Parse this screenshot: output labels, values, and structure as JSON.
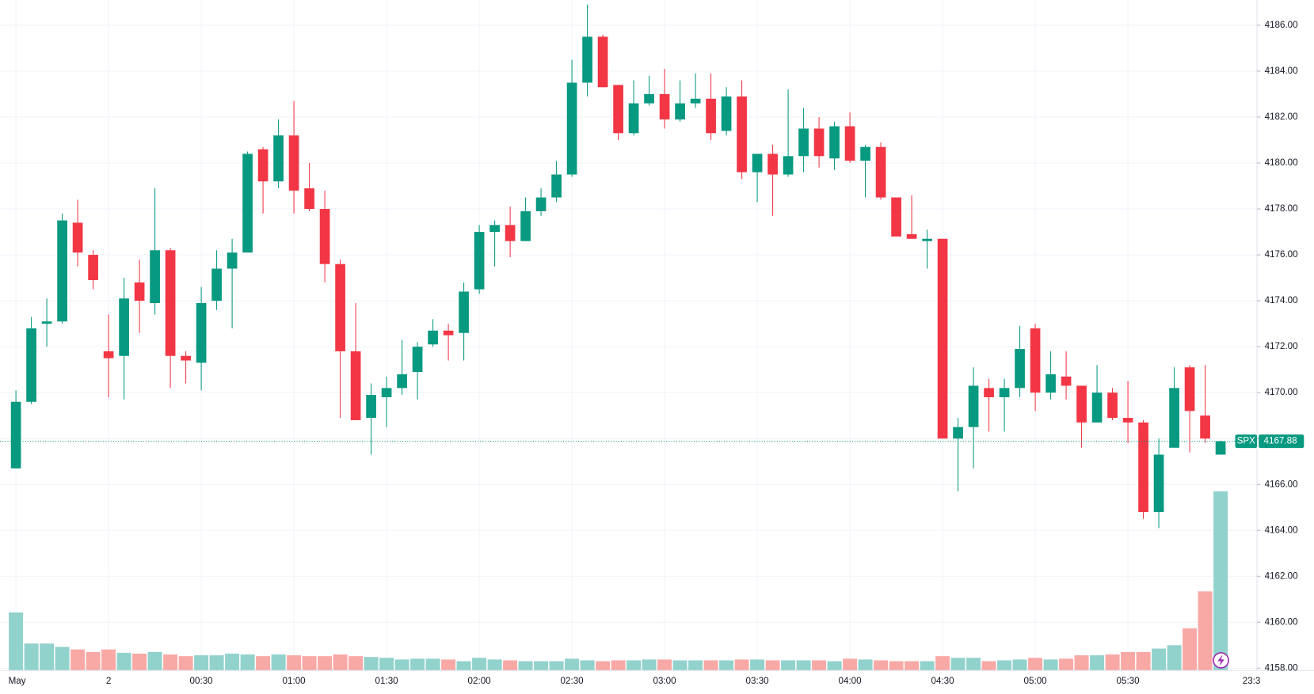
{
  "chart_data": {
    "type": "candlestick",
    "symbol": "SPX",
    "categories": [
      "May",
      null,
      null,
      null,
      null,
      null,
      "2",
      null,
      null,
      null,
      null,
      null,
      "00:30",
      null,
      null,
      null,
      null,
      null,
      "01:00",
      null,
      null,
      null,
      null,
      null,
      "01:30",
      null,
      null,
      null,
      null,
      null,
      "02:00",
      null,
      null,
      null,
      null,
      null,
      "02:30",
      null,
      null,
      null,
      null,
      null,
      "03:00",
      null,
      null,
      null,
      null,
      null,
      "03:30",
      null,
      null,
      null,
      null,
      null,
      "04:00",
      null,
      null,
      null,
      null,
      null,
      "04:30",
      null,
      null,
      null,
      null,
      null,
      "05:00",
      null,
      null,
      null,
      null,
      null,
      "05:30",
      null,
      null,
      null,
      null,
      null,
      null
    ],
    "extra_x_label": "23:3",
    "open": [
      4166.7,
      4169.6,
      4173.0,
      4173.1,
      4177.4,
      4176.0,
      4171.8,
      4171.6,
      4174.8,
      4173.9,
      4176.2,
      4171.6,
      4171.3,
      4174.0,
      4175.4,
      4176.1,
      4180.6,
      4179.2,
      4181.2,
      4178.9,
      4178.0,
      4175.6,
      4171.8,
      4168.9,
      4169.8,
      4170.2,
      4170.9,
      4172.1,
      4172.7,
      4172.6,
      4174.5,
      4177.0,
      4177.3,
      4176.6,
      4177.9,
      4178.5,
      4179.5,
      4183.5,
      4185.5,
      4183.4,
      4181.3,
      4182.6,
      4183.0,
      4181.9,
      4182.6,
      4182.8,
      4181.4,
      4182.9,
      4179.6,
      4180.4,
      4179.5,
      4180.3,
      4181.5,
      4180.2,
      4181.6,
      4180.1,
      4180.7,
      4178.5,
      4176.9,
      4176.6,
      4176.7,
      4168.0,
      4168.5,
      4170.2,
      4169.8,
      4170.2,
      4172.8,
      4170.0,
      4170.7,
      4170.3,
      4168.7,
      4170.0,
      4168.9,
      4168.7,
      4164.8,
      4167.6,
      4171.1,
      4169.0,
      4167.3
    ],
    "high": [
      4170.1,
      4173.3,
      4174.1,
      4177.8,
      4178.4,
      4176.2,
      4173.4,
      4175.0,
      4175.8,
      4178.9,
      4176.3,
      4171.8,
      4174.6,
      4176.2,
      4176.7,
      4180.5,
      4180.7,
      4181.9,
      4182.7,
      4180.0,
      4178.8,
      4175.8,
      4173.9,
      4170.4,
      4170.7,
      4172.3,
      4172.2,
      4173.2,
      4173.0,
      4174.8,
      4177.3,
      4177.5,
      4178.1,
      4178.5,
      4178.9,
      4180.1,
      4184.5,
      4186.9,
      4185.6,
      4183.4,
      4183.6,
      4183.8,
      4184.1,
      4183.6,
      4183.9,
      4183.9,
      4183.3,
      4183.6,
      4180.4,
      4180.8,
      4183.2,
      4182.4,
      4182.0,
      4181.8,
      4182.2,
      4180.8,
      4180.9,
      4178.5,
      4178.6,
      4177.1,
      4176.7,
      4168.9,
      4171.1,
      4170.6,
      4170.6,
      4172.9,
      4173.0,
      4171.8,
      4171.8,
      4170.3,
      4171.2,
      4170.2,
      4170.5,
      4168.8,
      4168.0,
      4171.1,
      4171.2,
      4171.2,
      4167.9
    ],
    "low": [
      4166.7,
      4169.5,
      4172.0,
      4173.0,
      4175.5,
      4174.5,
      4169.8,
      4169.7,
      4172.6,
      4173.4,
      4170.2,
      4170.4,
      4170.1,
      4173.6,
      4172.8,
      4176.1,
      4177.8,
      4178.9,
      4177.8,
      4177.9,
      4174.8,
      4168.9,
      4168.8,
      4167.3,
      4168.5,
      4169.9,
      4169.7,
      4172.0,
      4171.4,
      4171.4,
      4174.3,
      4175.5,
      4175.9,
      4176.6,
      4177.7,
      4178.3,
      4179.4,
      4182.9,
      4183.3,
      4181.0,
      4181.2,
      4182.5,
      4181.5,
      4181.8,
      4182.4,
      4181.0,
      4181.2,
      4179.3,
      4178.3,
      4177.7,
      4179.4,
      4179.6,
      4179.8,
      4179.7,
      4180.0,
      4178.5,
      4178.4,
      4176.8,
      4176.7,
      4175.4,
      4168.0,
      4165.7,
      4166.7,
      4168.3,
      4168.3,
      4169.8,
      4169.2,
      4169.7,
      4169.7,
      4167.6,
      4168.7,
      4168.8,
      4167.8,
      4164.5,
      4164.1,
      4167.6,
      4167.4,
      4167.8,
      4167.3
    ],
    "close": [
      4169.6,
      4172.8,
      4173.1,
      4177.5,
      4176.1,
      4174.9,
      4171.5,
      4174.1,
      4174.0,
      4176.2,
      4171.6,
      4171.4,
      4173.9,
      4175.4,
      4176.1,
      4180.4,
      4179.2,
      4181.2,
      4178.8,
      4178.0,
      4175.6,
      4171.8,
      4168.8,
      4169.9,
      4170.2,
      4170.8,
      4172.0,
      4172.7,
      4172.5,
      4174.4,
      4177.0,
      4177.3,
      4176.6,
      4177.9,
      4178.5,
      4179.5,
      4183.5,
      4185.5,
      4183.3,
      4181.3,
      4182.6,
      4183.0,
      4181.9,
      4182.6,
      4182.8,
      4181.3,
      4182.9,
      4179.6,
      4180.4,
      4179.5,
      4180.3,
      4181.5,
      4180.3,
      4181.6,
      4180.1,
      4180.7,
      4178.5,
      4176.8,
      4176.7,
      4176.7,
      4168.0,
      4168.5,
      4170.3,
      4169.8,
      4170.2,
      4171.9,
      4170.0,
      4170.8,
      4170.3,
      4168.7,
      4170.0,
      4168.9,
      4168.7,
      4164.8,
      4167.3,
      4170.2,
      4169.2,
      4168.0,
      4167.88
    ],
    "volume": [
      69,
      32,
      32,
      28,
      25,
      22,
      25,
      21,
      20,
      22,
      19,
      17,
      18,
      18,
      20,
      19,
      17,
      19,
      18,
      17,
      17,
      19,
      17,
      16,
      15,
      13,
      14,
      14,
      13,
      11,
      15,
      13,
      12,
      11,
      11,
      11,
      14,
      12,
      11,
      12,
      12,
      13,
      13,
      12,
      12,
      12,
      12,
      13,
      13,
      12,
      12,
      12,
      12,
      11,
      14,
      13,
      12,
      11,
      11,
      11,
      17,
      15,
      15,
      11,
      12,
      13,
      15,
      13,
      14,
      18,
      18,
      19,
      22,
      22,
      26,
      30,
      50,
      94,
      213
    ],
    "up_color": "#089981",
    "down_color": "#f23645",
    "volume_up_color": "#92d2cc",
    "volume_down_color": "#f8a9a6",
    "ylim": [
      4157.9,
      4187.1
    ],
    "yticks": [
      {
        "value": 4158,
        "label": "4158.00"
      },
      {
        "value": 4160,
        "label": "4160.00"
      },
      {
        "value": 4162,
        "label": "4162.00"
      },
      {
        "value": 4164,
        "label": "4164.00"
      },
      {
        "value": 4166,
        "label": "4166.00"
      },
      {
        "value": 4168,
        "label": "4168.00"
      },
      {
        "value": 4170,
        "label": "4170.00"
      },
      {
        "value": 4172,
        "label": "4172.00"
      },
      {
        "value": 4174,
        "label": "4174.00"
      },
      {
        "value": 4176,
        "label": "4176.00"
      },
      {
        "value": 4178,
        "label": "4178.00"
      },
      {
        "value": 4180,
        "label": "4180.00"
      },
      {
        "value": 4182,
        "label": "4182.00"
      },
      {
        "value": 4184,
        "label": "4184.00"
      },
      {
        "value": 4186,
        "label": "4186.00"
      }
    ],
    "grid": true
  }
}
